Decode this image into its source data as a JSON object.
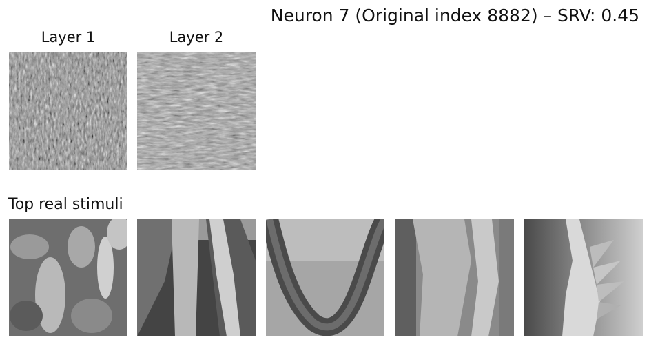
{
  "title": "Neuron 7 (Original index 8882) – SRV: 0.45",
  "layers": [
    {
      "label": "Layer 1"
    },
    {
      "label": "Layer 2"
    }
  ],
  "stimuli_section": {
    "label": "Top real stimuli",
    "images": [
      {
        "name": "stimulus-1",
        "description_icon": "texture-image"
      },
      {
        "name": "stimulus-2",
        "description_icon": "texture-image"
      },
      {
        "name": "stimulus-3",
        "description_icon": "snake-image"
      },
      {
        "name": "stimulus-4",
        "description_icon": "texture-image"
      },
      {
        "name": "stimulus-5",
        "description_icon": "feather-image"
      }
    ]
  }
}
